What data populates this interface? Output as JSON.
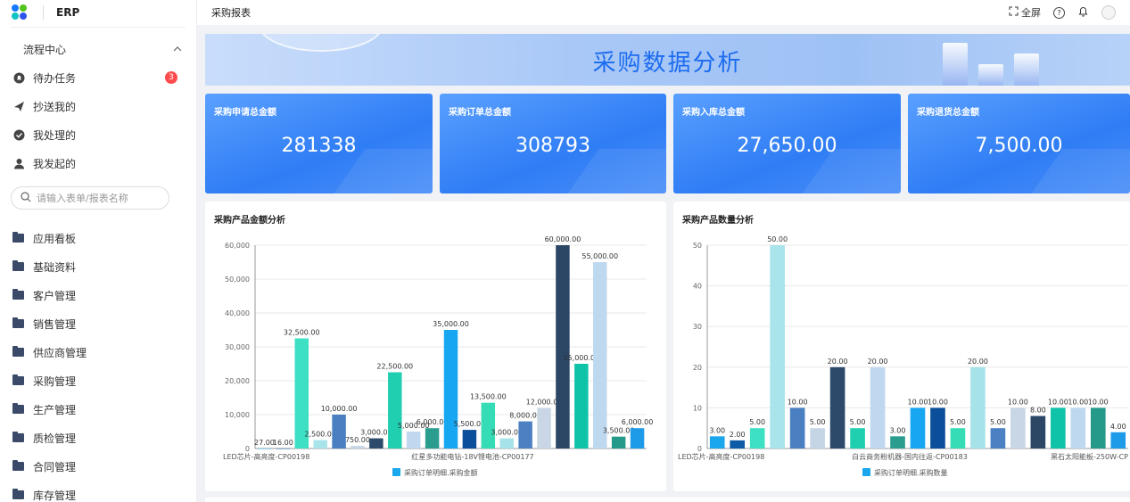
{
  "app": {
    "brand": "ERP"
  },
  "sidebar": {
    "flow_center": "流程中心",
    "flow_items": [
      {
        "label": "待办任务",
        "icon": "bell-icon",
        "badge": "3"
      },
      {
        "label": "抄送我的",
        "icon": "send-icon"
      },
      {
        "label": "我处理的",
        "icon": "check-circle-icon"
      },
      {
        "label": "我发起的",
        "icon": "user-icon"
      }
    ],
    "search_placeholder": "请输入表单/报表名称",
    "menu": [
      "应用看板",
      "基础资料",
      "客户管理",
      "销售管理",
      "供应商管理",
      "采购管理",
      "生产管理",
      "质检管理",
      "合同管理",
      "库存管理"
    ]
  },
  "header": {
    "title": "采购报表",
    "fullscreen": "全屏"
  },
  "banner": {
    "title": "采购数据分析"
  },
  "cards": [
    {
      "title": "采购申请总金额",
      "value": "281338"
    },
    {
      "title": "采购订单总金额",
      "value": "308793"
    },
    {
      "title": "采购入库总金额",
      "value": "27,650.00"
    },
    {
      "title": "采购退货总金额",
      "value": "7,500.00"
    }
  ],
  "chart_data": [
    {
      "type": "bar",
      "title": "采购产品金额分析",
      "series_name": "采购订单明细.采购金额",
      "ylim": [
        0,
        60000
      ],
      "yticks": [
        "0",
        "10,000",
        "20,000",
        "30,000",
        "40,000",
        "50,000",
        "60,000"
      ],
      "ytick_values": [
        0,
        10000,
        20000,
        30000,
        40000,
        50000,
        60000
      ],
      "x_labels": [
        "LED芯片-高亮度-CP00198",
        "红星多功能电钻-18V锂电池-CP00177"
      ],
      "values": [
        27,
        16,
        32500,
        2500,
        10000,
        750,
        3000,
        22500,
        5000,
        6000,
        35000,
        5500,
        13500,
        3000,
        8000,
        12000,
        60000,
        25000,
        55000,
        3500,
        6000
      ],
      "labels": [
        "27.00",
        "16.00",
        "32,500.00",
        "2,500.00",
        "10,000.00",
        "750.00",
        "3,000.00",
        "22,500.00",
        "5,000.00",
        "6,000.00",
        "35,000.00",
        "5,500.00",
        "13,500.00",
        "3,000.00",
        "8,000.00",
        "12,000.00",
        "60,000.00",
        "25,000.00",
        "55,000.00",
        "3,500.00",
        "6,000.00"
      ],
      "colors": [
        "#1aa7ec",
        "#0d5aa7",
        "#3ee0c4",
        "#a8e4ea",
        "#4a7fc1",
        "#c5d5e5",
        "#2d4a6a",
        "#1fcfaf",
        "#bfd7ef",
        "#2a9d8f",
        "#16a6f2",
        "#0b4f9a",
        "#36dcb5",
        "#a6e3e9",
        "#4b80c2",
        "#c8d6e5",
        "#2c4666",
        "#0fc3a8",
        "#bed8f0",
        "#25998a",
        "#1e9be8"
      ]
    },
    {
      "type": "bar",
      "title": "采购产品数量分析",
      "series_name": "采购订单明细.采购数量",
      "ylim": [
        0,
        50
      ],
      "yticks": [
        "0",
        "10",
        "20",
        "30",
        "40",
        "50"
      ],
      "ytick_values": [
        0,
        10,
        20,
        30,
        40,
        50
      ],
      "x_labels": [
        "LED芯片-高亮度-CP00198",
        "白云商务粉机器-国内往返-CP00183",
        "黑石太阳能板-250W-CP"
      ],
      "values": [
        3,
        2,
        5,
        50,
        10,
        5,
        20,
        5,
        20,
        3,
        10,
        10,
        5,
        20,
        5,
        10,
        8,
        10,
        10,
        10,
        4
      ],
      "labels": [
        "3.00",
        "2.00",
        "5.00",
        "50.00",
        "10.00",
        "5.00",
        "20.00",
        "5.00",
        "20.00",
        "3.00",
        "10.00",
        "10.00",
        "5.00",
        "20.00",
        "5.00",
        "10.00",
        "8.00",
        "10.00",
        "10.00",
        "10.00",
        "4.00"
      ],
      "colors": [
        "#1aa7ec",
        "#0d5aa7",
        "#3ee0c4",
        "#a8e4ea",
        "#4a7fc1",
        "#c5d5e5",
        "#2d4a6a",
        "#1fcfaf",
        "#bfd7ef",
        "#2a9d8f",
        "#16a6f2",
        "#0b4f9a",
        "#36dcb5",
        "#a6e3e9",
        "#4b80c2",
        "#c8d6e5",
        "#2c4666",
        "#0fc3a8",
        "#bed8f0",
        "#25998a",
        "#1e9be8"
      ]
    }
  ]
}
